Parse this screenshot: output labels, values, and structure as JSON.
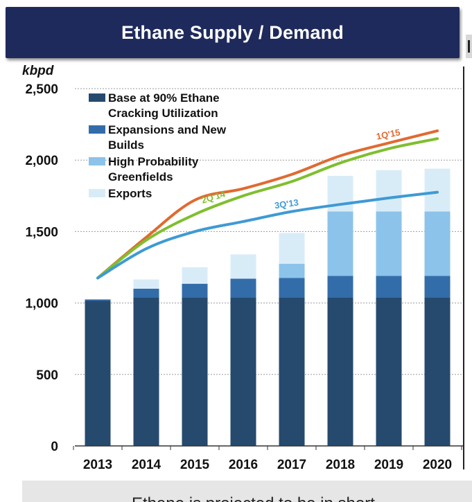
{
  "header": {
    "title": "Ethane Supply / Demand"
  },
  "footer": {
    "text": "Ethane is projected to be in short"
  },
  "chart_data": {
    "type": "bar",
    "stacked": true,
    "unit_label": "kbpd",
    "xlabel": "",
    "ylabel": "kbpd",
    "ylim": [
      0,
      2500
    ],
    "yticks": [
      0,
      500,
      1000,
      1500,
      2000,
      2500
    ],
    "ytick_labels": [
      "0",
      "500",
      "1,000",
      "1,500",
      "2,000",
      "2,500"
    ],
    "grid": true,
    "legend_position": "top-left",
    "categories": [
      "2013",
      "2014",
      "2015",
      "2016",
      "2017",
      "2018",
      "2019",
      "2020"
    ],
    "series": [
      {
        "name": "Base at 90% Ethane Cracking Utilization",
        "legend_lines": [
          "Base at 90% Ethane",
          "Cracking Utilization"
        ],
        "color": "#264a6e",
        "values": [
          1015,
          1040,
          1040,
          1040,
          1040,
          1040,
          1040,
          1040
        ]
      },
      {
        "name": "Expansions and New Builds",
        "legend_lines": [
          "Expansions and New",
          "Builds"
        ],
        "color": "#336da9",
        "values": [
          10,
          60,
          95,
          130,
          135,
          150,
          150,
          150
        ]
      },
      {
        "name": "High Probability Greenfields",
        "legend_lines": [
          "High Probability",
          "Greenfields"
        ],
        "color": "#8cc3ea",
        "values": [
          0,
          0,
          0,
          0,
          100,
          450,
          450,
          450
        ]
      },
      {
        "name": "Exports",
        "legend_lines": [
          "Exports"
        ],
        "color": "#d8ecf8",
        "values": [
          0,
          65,
          115,
          170,
          215,
          250,
          290,
          300
        ]
      }
    ],
    "lines": [
      {
        "name": "1Q'15",
        "color": "#e06a30",
        "x": [
          "2013",
          "2014",
          "2015",
          "2016",
          "2017",
          "2018",
          "2019",
          "2020"
        ],
        "values": [
          1175,
          1460,
          1720,
          1800,
          1900,
          2030,
          2120,
          2205
        ]
      },
      {
        "name": "2Q'14",
        "color": "#7fbf2e",
        "x": [
          "2013",
          "2014",
          "2015",
          "2016",
          "2017",
          "2018",
          "2019",
          "2020"
        ],
        "values": [
          1175,
          1440,
          1620,
          1750,
          1850,
          1980,
          2080,
          2150
        ]
      },
      {
        "name": "3Q'13",
        "color": "#3e9ad4",
        "x": [
          "2013",
          "2014",
          "2015",
          "2016",
          "2017",
          "2018",
          "2019",
          "2020"
        ],
        "values": [
          1175,
          1380,
          1500,
          1570,
          1640,
          1690,
          1735,
          1775
        ]
      }
    ]
  }
}
